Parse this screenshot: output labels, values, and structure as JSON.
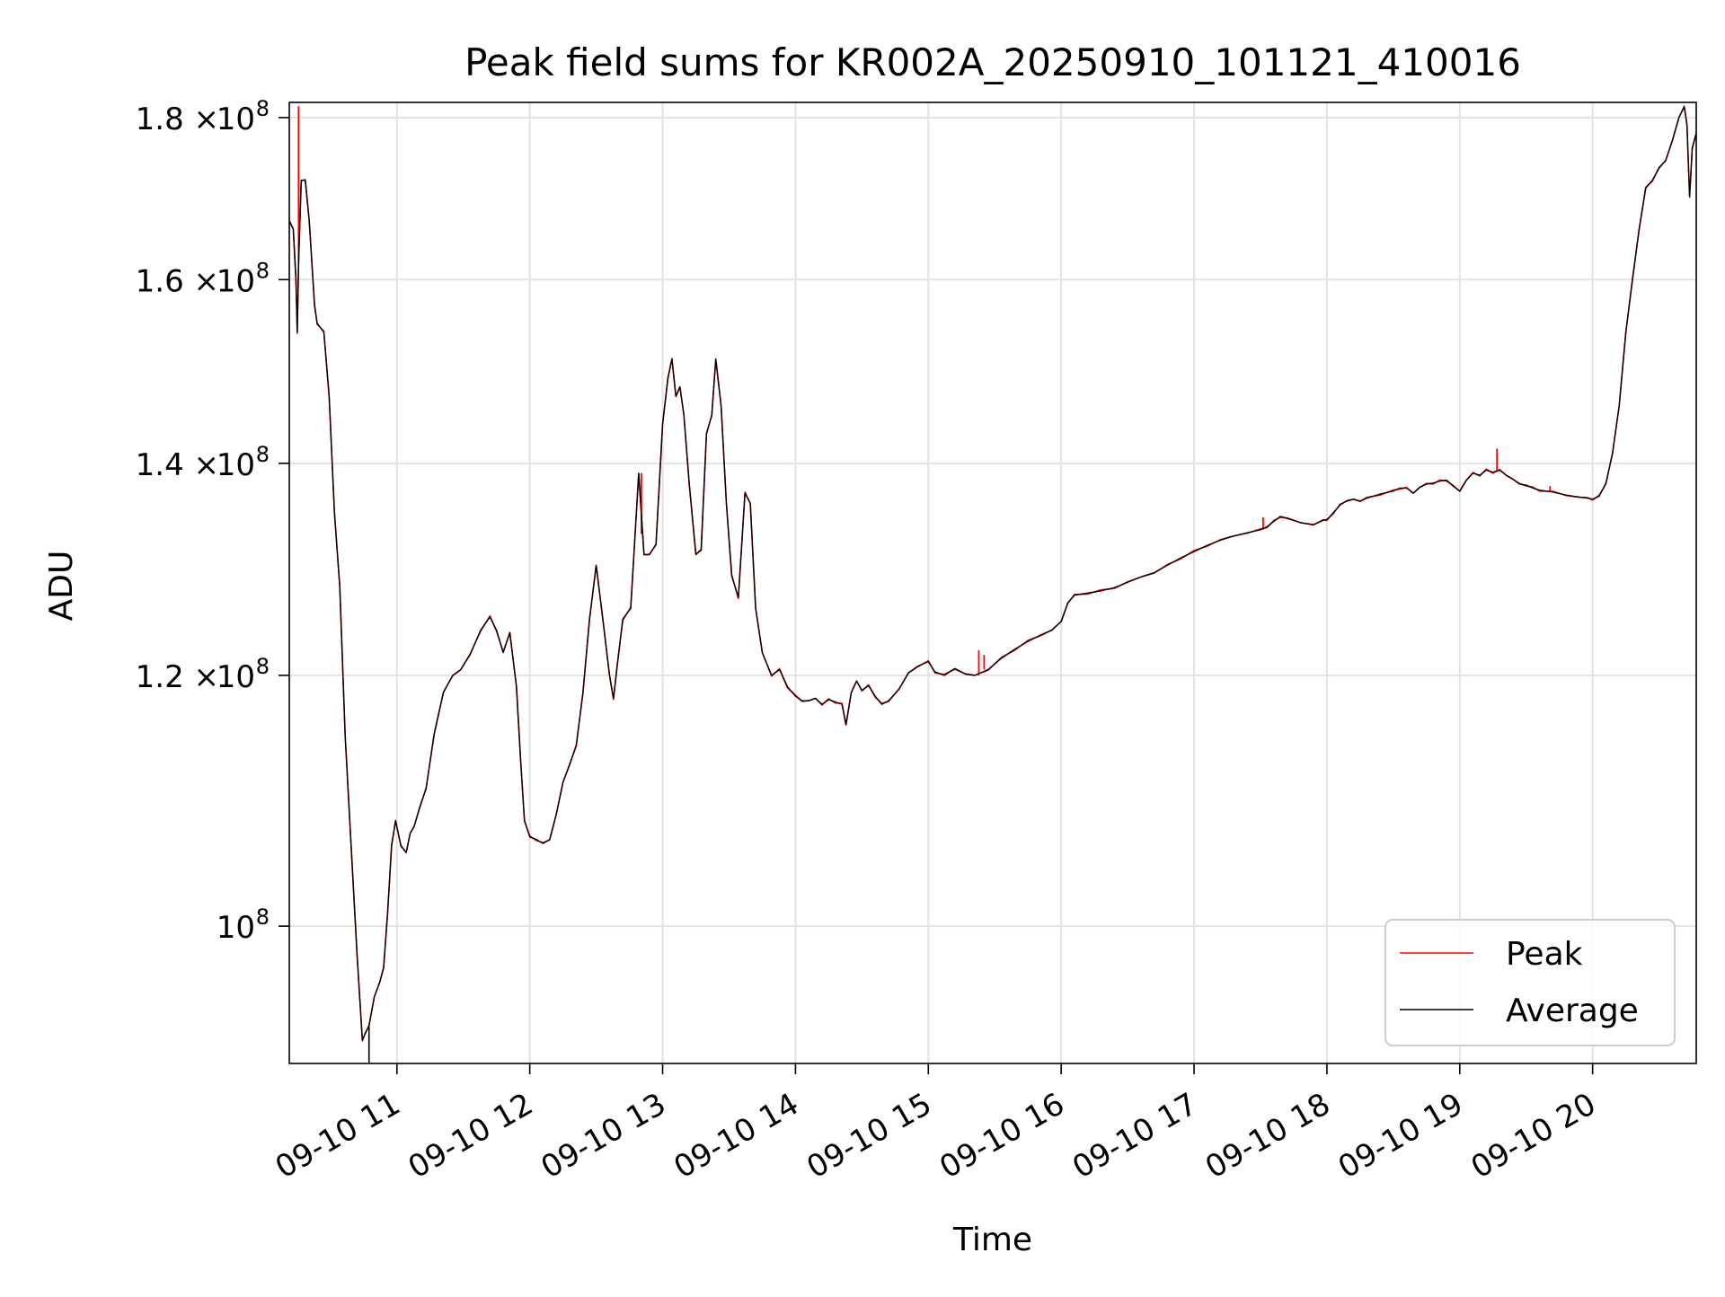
{
  "chart_data": {
    "type": "line",
    "title": "Peak field sums for KR002A_20250910_101121_410016",
    "xlabel": "Time",
    "ylabel": "ADU",
    "x_unit": "hour of 2025-09-10",
    "x_ticks": [
      {
        "value": 11,
        "label": "09-10 11"
      },
      {
        "value": 12,
        "label": "09-10 12"
      },
      {
        "value": 13,
        "label": "09-10 13"
      },
      {
        "value": 14,
        "label": "09-10 14"
      },
      {
        "value": 15,
        "label": "09-10 15"
      },
      {
        "value": 16,
        "label": "09-10 16"
      },
      {
        "value": 17,
        "label": "09-10 17"
      },
      {
        "value": 18,
        "label": "09-10 18"
      },
      {
        "value": 19,
        "label": "09-10 19"
      },
      {
        "value": 20,
        "label": "09-10 20"
      }
    ],
    "xlim": [
      10.19,
      20.78
    ],
    "y_scale": "log",
    "ylim": [
      90500000,
      182000000
    ],
    "y_ticks": [
      {
        "value": 100000000,
        "mant": "",
        "exp": "8"
      },
      {
        "value": 120000000,
        "mant": "1.2",
        "exp": "8"
      },
      {
        "value": 140000000,
        "mant": "1.4",
        "exp": "8"
      },
      {
        "value": 160000000,
        "mant": "1.6",
        "exp": "8"
      },
      {
        "value": 180000000,
        "mant": "1.8",
        "exp": "8"
      }
    ],
    "grid": true,
    "legend": {
      "position": "bottom-right"
    },
    "series": [
      {
        "name": "Peak",
        "color": "#ff0000",
        "line": "thin"
      },
      {
        "name": "Average",
        "color": "#000000",
        "line": "thin"
      }
    ],
    "average_points": [
      [
        10.19,
        167000000
      ],
      [
        10.22,
        166000000
      ],
      [
        10.24,
        160000000
      ],
      [
        10.25,
        154000000
      ],
      [
        10.26,
        162000000
      ],
      [
        10.28,
        172000000
      ],
      [
        10.31,
        172000000
      ],
      [
        10.34,
        167000000
      ],
      [
        10.36,
        162000000
      ],
      [
        10.38,
        157000000
      ],
      [
        10.4,
        155000000
      ],
      [
        10.45,
        154000000
      ],
      [
        10.49,
        147000000
      ],
      [
        10.53,
        135000000
      ],
      [
        10.57,
        128000000
      ],
      [
        10.61,
        115000000
      ],
      [
        10.65,
        107000000
      ],
      [
        10.7,
        98000000
      ],
      [
        10.74,
        92000000
      ],
      [
        10.76,
        92500000
      ],
      [
        10.79,
        93000000
      ],
      [
        10.83,
        95000000
      ],
      [
        10.87,
        96000000
      ],
      [
        10.9,
        97000000
      ],
      [
        10.93,
        101000000
      ],
      [
        10.96,
        106000000
      ],
      [
        10.99,
        108000000
      ],
      [
        11.03,
        106000000
      ],
      [
        11.07,
        105500000
      ],
      [
        11.1,
        107000000
      ],
      [
        11.13,
        107500000
      ],
      [
        11.17,
        109000000
      ],
      [
        11.22,
        110500000
      ],
      [
        11.28,
        115000000
      ],
      [
        11.35,
        118500000
      ],
      [
        11.42,
        120000000
      ],
      [
        11.48,
        120500000
      ],
      [
        11.55,
        121800000
      ],
      [
        11.63,
        124000000
      ],
      [
        11.7,
        125200000
      ],
      [
        11.75,
        124000000
      ],
      [
        11.8,
        122000000
      ],
      [
        11.85,
        123800000
      ],
      [
        11.9,
        119000000
      ],
      [
        11.93,
        113000000
      ],
      [
        11.96,
        108000000
      ],
      [
        12.0,
        106700000
      ],
      [
        12.05,
        106500000
      ],
      [
        12.1,
        106200000
      ],
      [
        12.15,
        106500000
      ],
      [
        12.2,
        108500000
      ],
      [
        12.25,
        111000000
      ],
      [
        12.3,
        112500000
      ],
      [
        12.35,
        114000000
      ],
      [
        12.4,
        118500000
      ],
      [
        12.45,
        125000000
      ],
      [
        12.5,
        130000000
      ],
      [
        12.55,
        125000000
      ],
      [
        12.6,
        120000000
      ],
      [
        12.63,
        118000000
      ],
      [
        12.66,
        121000000
      ],
      [
        12.7,
        125000000
      ],
      [
        12.76,
        126000000
      ],
      [
        12.82,
        139000000
      ],
      [
        12.86,
        131000000
      ],
      [
        12.9,
        131000000
      ],
      [
        12.95,
        132000000
      ],
      [
        13.0,
        144000000
      ],
      [
        13.04,
        149000000
      ],
      [
        13.07,
        151000000
      ],
      [
        13.1,
        147000000
      ],
      [
        13.13,
        148000000
      ],
      [
        13.16,
        145000000
      ],
      [
        13.2,
        138000000
      ],
      [
        13.25,
        131000000
      ],
      [
        13.29,
        131500000
      ],
      [
        13.33,
        143000000
      ],
      [
        13.37,
        145000000
      ],
      [
        13.4,
        151000000
      ],
      [
        13.44,
        146000000
      ],
      [
        13.48,
        136000000
      ],
      [
        13.52,
        129000000
      ],
      [
        13.57,
        127000000
      ],
      [
        13.62,
        137000000
      ],
      [
        13.66,
        136000000
      ],
      [
        13.7,
        126000000
      ],
      [
        13.75,
        122000000
      ],
      [
        13.82,
        120000000
      ],
      [
        13.88,
        120500000
      ],
      [
        13.94,
        119000000
      ],
      [
        14.0,
        118200000
      ],
      [
        14.05,
        117800000
      ],
      [
        14.1,
        117800000
      ],
      [
        14.15,
        118000000
      ],
      [
        14.2,
        117500000
      ],
      [
        14.25,
        117900000
      ],
      [
        14.3,
        117700000
      ],
      [
        14.35,
        117500000
      ],
      [
        14.38,
        115800000
      ],
      [
        14.42,
        118500000
      ],
      [
        14.46,
        119500000
      ],
      [
        14.5,
        118700000
      ],
      [
        14.55,
        119100000
      ],
      [
        14.6,
        118200000
      ],
      [
        14.65,
        117500000
      ],
      [
        14.7,
        117800000
      ],
      [
        14.78,
        118800000
      ],
      [
        14.85,
        120200000
      ],
      [
        14.92,
        120800000
      ],
      [
        15.0,
        121200000
      ],
      [
        15.05,
        120300000
      ],
      [
        15.12,
        120000000
      ],
      [
        15.2,
        120600000
      ],
      [
        15.28,
        120100000
      ],
      [
        15.35,
        120000000
      ],
      [
        15.45,
        120500000
      ],
      [
        15.55,
        121500000
      ],
      [
        15.65,
        122300000
      ],
      [
        15.75,
        123000000
      ],
      [
        15.85,
        123600000
      ],
      [
        15.93,
        124000000
      ],
      [
        16.0,
        124800000
      ],
      [
        16.05,
        126500000
      ],
      [
        16.1,
        127200000
      ],
      [
        16.2,
        127400000
      ],
      [
        16.3,
        127600000
      ],
      [
        16.4,
        127900000
      ],
      [
        16.5,
        128400000
      ],
      [
        16.6,
        128900000
      ],
      [
        16.7,
        129300000
      ],
      [
        16.8,
        130000000
      ],
      [
        16.9,
        130700000
      ],
      [
        17.0,
        131300000
      ],
      [
        17.1,
        131900000
      ],
      [
        17.2,
        132400000
      ],
      [
        17.3,
        132800000
      ],
      [
        17.4,
        133100000
      ],
      [
        17.5,
        133400000
      ],
      [
        17.55,
        133700000
      ],
      [
        17.6,
        134200000
      ],
      [
        17.65,
        134700000
      ],
      [
        17.7,
        134500000
      ],
      [
        17.8,
        134100000
      ],
      [
        17.9,
        133900000
      ],
      [
        17.97,
        134300000
      ],
      [
        18.0,
        134400000
      ],
      [
        18.05,
        135000000
      ],
      [
        18.1,
        135900000
      ],
      [
        18.15,
        136200000
      ],
      [
        18.2,
        136400000
      ],
      [
        18.25,
        136200000
      ],
      [
        18.3,
        136500000
      ],
      [
        18.4,
        136900000
      ],
      [
        18.5,
        137200000
      ],
      [
        18.55,
        137500000
      ],
      [
        18.6,
        137500000
      ],
      [
        18.65,
        137000000
      ],
      [
        18.7,
        137600000
      ],
      [
        18.75,
        137900000
      ],
      [
        18.8,
        138000000
      ],
      [
        18.85,
        138200000
      ],
      [
        18.9,
        138300000
      ],
      [
        18.95,
        137700000
      ],
      [
        19.0,
        137200000
      ],
      [
        19.05,
        138300000
      ],
      [
        19.1,
        139000000
      ],
      [
        19.15,
        138800000
      ],
      [
        19.2,
        139300000
      ],
      [
        19.25,
        139100000
      ],
      [
        19.3,
        139300000
      ],
      [
        19.35,
        138800000
      ],
      [
        19.4,
        138400000
      ],
      [
        19.45,
        137900000
      ],
      [
        19.5,
        137800000
      ],
      [
        19.55,
        137500000
      ],
      [
        19.6,
        137300000
      ],
      [
        19.7,
        137100000
      ],
      [
        19.8,
        136800000
      ],
      [
        19.9,
        136600000
      ],
      [
        19.96,
        136500000
      ],
      [
        20.0,
        136400000
      ],
      [
        20.05,
        136700000
      ],
      [
        20.1,
        138000000
      ],
      [
        20.15,
        141000000
      ],
      [
        20.2,
        146000000
      ],
      [
        20.25,
        154000000
      ],
      [
        20.3,
        160000000
      ],
      [
        20.35,
        166000000
      ],
      [
        20.4,
        171000000
      ],
      [
        20.45,
        172000000
      ],
      [
        20.5,
        173500000
      ],
      [
        20.55,
        174500000
      ],
      [
        20.6,
        177000000
      ],
      [
        20.65,
        180000000
      ],
      [
        20.69,
        181500000
      ],
      [
        20.71,
        179000000
      ],
      [
        20.73,
        170000000
      ],
      [
        20.75,
        176000000
      ],
      [
        20.78,
        178000000
      ]
    ],
    "peak_spikes": [
      [
        10.26,
        181500000
      ],
      [
        12.84,
        133000000
      ],
      [
        15.38,
        122200000
      ],
      [
        15.42,
        121800000
      ],
      [
        17.52,
        134600000
      ],
      [
        19.28,
        141500000
      ],
      [
        19.68,
        137700000
      ]
    ],
    "average_dips": [
      [
        10.79,
        90500000
      ]
    ]
  }
}
